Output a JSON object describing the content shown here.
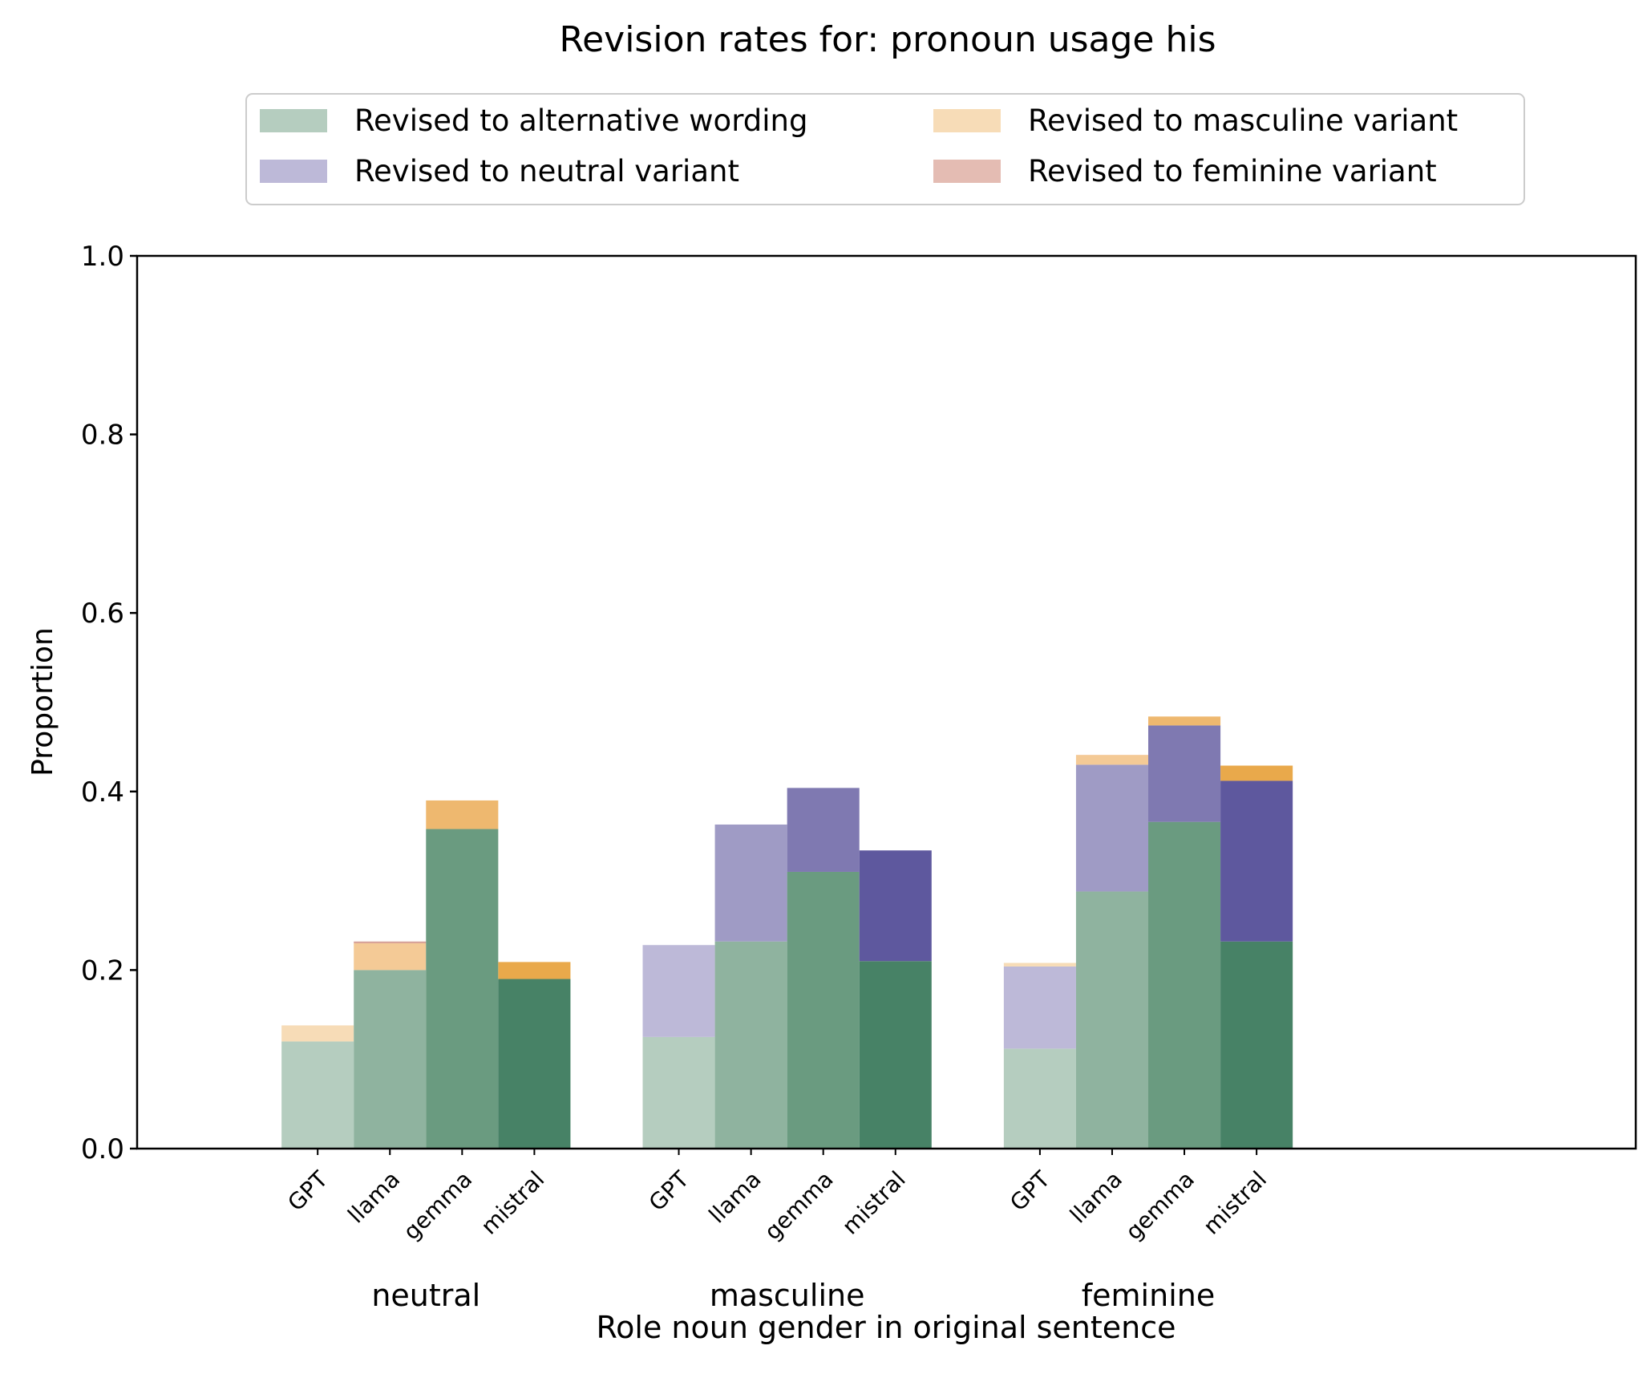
{
  "chart_data": {
    "type": "bar",
    "stacked": true,
    "title": "Revision rates for: pronoun usage his",
    "xlabel": "Role noun gender in original sentence",
    "ylabel": "Proportion",
    "ylim": [
      0,
      1
    ],
    "yticks": [
      "0.0",
      "0.2",
      "0.4",
      "0.6",
      "0.8",
      "1.0"
    ],
    "groups": [
      "neutral",
      "masculine",
      "feminine"
    ],
    "models": [
      "GPT",
      "llama",
      "gemma",
      "mistral"
    ],
    "legend": {
      "placement": "top-center",
      "columns": 2,
      "entries": [
        {
          "key": "alt",
          "label": "Revised to alternative wording",
          "color": "#b5cdbf"
        },
        {
          "key": "neu",
          "label": "Revised to neutral variant",
          "color": "#bdb9d8"
        },
        {
          "key": "mas",
          "label": "Revised to masculine variant",
          "color": "#f7dcb7"
        },
        {
          "key": "fem",
          "label": "Revised to feminine variant",
          "color": "#e4bcb3"
        }
      ]
    },
    "series_order": [
      "alt",
      "neu",
      "mas",
      "fem"
    ],
    "palette": {
      "alt": [
        "#b5cdbf",
        "#8fb39f",
        "#6a9b80",
        "#478266"
      ],
      "neu": [
        "#bdb9d8",
        "#9f9bc5",
        "#7f79b1",
        "#5e589e"
      ],
      "mas": [
        "#f7dcb7",
        "#f4ca96",
        "#eeb86f",
        "#e9a94b"
      ],
      "fem": [
        "#e4bcb3",
        "#d8a398",
        "#cc8a7d",
        "#c07162"
      ]
    },
    "data": {
      "neutral": {
        "GPT": {
          "alt": 0.12,
          "neu": 0.0,
          "mas": 0.018,
          "fem": 0.0
        },
        "llama": {
          "alt": 0.2,
          "neu": 0.0,
          "mas": 0.03,
          "fem": 0.002
        },
        "gemma": {
          "alt": 0.358,
          "neu": 0.0,
          "mas": 0.032,
          "fem": 0.0
        },
        "mistral": {
          "alt": 0.19,
          "neu": 0.0,
          "mas": 0.019,
          "fem": 0.0
        }
      },
      "masculine": {
        "GPT": {
          "alt": 0.125,
          "neu": 0.103,
          "mas": 0.0,
          "fem": 0.0
        },
        "llama": {
          "alt": 0.232,
          "neu": 0.131,
          "mas": 0.0,
          "fem": 0.0
        },
        "gemma": {
          "alt": 0.31,
          "neu": 0.094,
          "mas": 0.0,
          "fem": 0.0
        },
        "mistral": {
          "alt": 0.21,
          "neu": 0.124,
          "mas": 0.0,
          "fem": 0.0
        }
      },
      "feminine": {
        "GPT": {
          "alt": 0.112,
          "neu": 0.092,
          "mas": 0.004,
          "fem": 0.0
        },
        "llama": {
          "alt": 0.288,
          "neu": 0.142,
          "mas": 0.011,
          "fem": 0.0
        },
        "gemma": {
          "alt": 0.366,
          "neu": 0.108,
          "mas": 0.01,
          "fem": 0.0
        },
        "mistral": {
          "alt": 0.232,
          "neu": 0.18,
          "mas": 0.017,
          "fem": 0.0
        }
      }
    },
    "grid": false
  }
}
